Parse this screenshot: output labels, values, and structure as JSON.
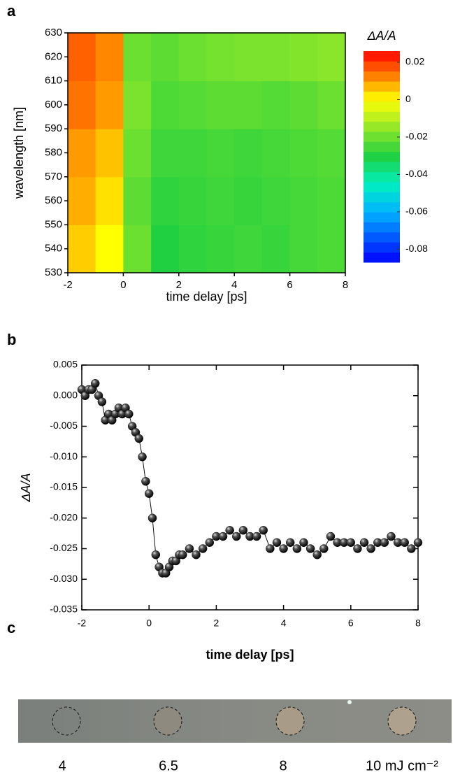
{
  "panel_labels": [
    "a",
    "b",
    "c"
  ],
  "chart_data": [
    {
      "type": "heatmap",
      "xlabel": "time delay [ps]",
      "ylabel": "wavelength [nm]",
      "colorbar_label": "ΔA/A",
      "x": [
        -2,
        -1,
        0,
        1,
        2,
        3,
        4,
        5,
        6,
        7,
        8
      ],
      "y": [
        530,
        550,
        570,
        590,
        610,
        630
      ],
      "values": [
        [
          0.005,
          0,
          -0.02,
          -0.03,
          -0.028,
          -0.027,
          -0.026,
          -0.027,
          -0.025,
          -0.024
        ],
        [
          0.008,
          0.003,
          -0.022,
          -0.028,
          -0.027,
          -0.026,
          -0.027,
          -0.026,
          -0.025,
          -0.024
        ],
        [
          0.01,
          0.006,
          -0.02,
          -0.026,
          -0.026,
          -0.025,
          -0.026,
          -0.025,
          -0.024,
          -0.023
        ],
        [
          0.014,
          0.01,
          -0.018,
          -0.024,
          -0.023,
          -0.022,
          -0.022,
          -0.023,
          -0.022,
          -0.02
        ],
        [
          0.016,
          0.012,
          -0.02,
          -0.022,
          -0.02,
          -0.019,
          -0.018,
          -0.018,
          -0.017,
          -0.016
        ]
      ],
      "xlim": [
        -2,
        8
      ],
      "xticks": [
        -2,
        0,
        2,
        4,
        6,
        8
      ],
      "ylim": [
        530,
        630
      ],
      "yticks": [
        530,
        540,
        550,
        560,
        570,
        580,
        590,
        600,
        610,
        620,
        630
      ],
      "clim": [
        -0.087,
        0.026
      ],
      "cticks": [
        0.02,
        0,
        -0.02,
        -0.04,
        -0.06,
        -0.08
      ],
      "colorscale": [
        [
          -0.087,
          "#0000ff"
        ],
        [
          -0.06,
          "#00b4ff"
        ],
        [
          -0.045,
          "#00f0c0"
        ],
        [
          -0.03,
          "#20d040"
        ],
        [
          -0.01,
          "#b8f020"
        ],
        [
          0,
          "#ffff00"
        ],
        [
          0.01,
          "#ff9a00"
        ],
        [
          0.026,
          "#ff0000"
        ]
      ]
    },
    {
      "type": "line",
      "xlabel": "time delay [ps]",
      "ylabel": "ΔA/A",
      "series": [
        {
          "color": "#111111",
          "x": [
            -2,
            -1.9,
            -1.8,
            -1.7,
            -1.6,
            -1.5,
            -1.4,
            -1.3,
            -1.2,
            -1.1,
            -1,
            -0.9,
            -0.8,
            -0.7,
            -0.6,
            -0.5,
            -0.4,
            -0.3,
            -0.2,
            -0.1,
            0,
            0.1,
            0.2,
            0.3,
            0.4,
            0.5,
            0.6,
            0.7,
            0.8,
            0.9,
            1,
            1.2,
            1.4,
            1.6,
            1.8,
            2,
            2.2,
            2.4,
            2.6,
            2.8,
            3,
            3.2,
            3.4,
            3.6,
            3.8,
            4,
            4.2,
            4.4,
            4.6,
            4.8,
            5,
            5.2,
            5.4,
            5.6,
            5.8,
            6,
            6.2,
            6.4,
            6.6,
            6.8,
            7,
            7.2,
            7.4,
            7.6,
            7.8,
            8
          ],
          "values": [
            0.001,
            0,
            0.001,
            0.001,
            0.002,
            0,
            -0.001,
            -0.004,
            -0.003,
            -0.004,
            -0.003,
            -0.002,
            -0.003,
            -0.002,
            -0.003,
            -0.005,
            -0.006,
            -0.007,
            -0.01,
            -0.014,
            -0.016,
            -0.02,
            -0.026,
            -0.028,
            -0.029,
            -0.029,
            -0.028,
            -0.027,
            -0.027,
            -0.026,
            -0.026,
            -0.025,
            -0.026,
            -0.025,
            -0.024,
            -0.023,
            -0.023,
            -0.022,
            -0.023,
            -0.022,
            -0.023,
            -0.023,
            -0.022,
            -0.025,
            -0.024,
            -0.025,
            -0.024,
            -0.025,
            -0.024,
            -0.025,
            -0.026,
            -0.025,
            -0.023,
            -0.024,
            -0.024,
            -0.024,
            -0.025,
            -0.024,
            -0.025,
            -0.024,
            -0.024,
            -0.023,
            -0.024,
            -0.024,
            -0.025,
            -0.024
          ]
        }
      ],
      "xlim": [
        -2,
        8
      ],
      "xticks": [
        -2,
        0,
        2,
        4,
        6,
        8
      ],
      "ylim": [
        -0.035,
        0.005
      ],
      "yticks": [
        0.005,
        {
          "value": 0,
          "label": "0.000"
        },
        -0.005,
        {
          "value": -0.01,
          "label": "-0.010"
        },
        -0.015,
        {
          "value": -0.02,
          "label": "-0.020"
        },
        -0.025,
        {
          "value": -0.03,
          "label": "-0.030"
        },
        -0.035
      ]
    }
  ],
  "image_strip": {
    "labels": [
      "4",
      "6.5",
      "8",
      "10 mJ cm⁻²"
    ]
  }
}
